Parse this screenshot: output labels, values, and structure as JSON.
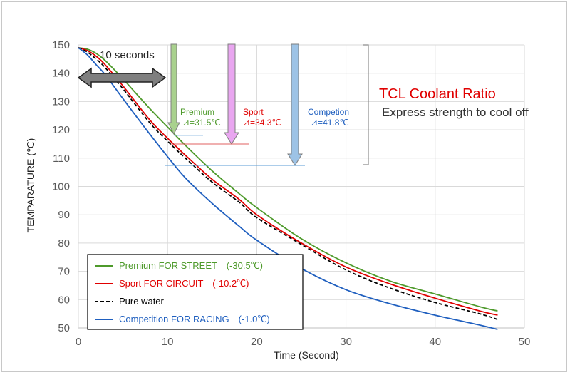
{
  "chart_data": {
    "type": "line",
    "xlabel": "Time (Second)",
    "ylabel": "TEMPARATURE (℃)",
    "xlim": [
      0,
      50
    ],
    "ylim": [
      50,
      150
    ],
    "xticks": [
      0,
      10,
      20,
      30,
      40,
      50
    ],
    "yticks": [
      50,
      60,
      70,
      80,
      90,
      100,
      110,
      120,
      130,
      140,
      150
    ],
    "grid": true,
    "legend_position": "bottom-left",
    "series": [
      {
        "name": "Premium FOR STREET　(-30.5℃)",
        "color": "#4e9a2b",
        "dash": "solid",
        "x": [
          0,
          1,
          2,
          3,
          5,
          8,
          10,
          12,
          15,
          18,
          20,
          25,
          30,
          35,
          40,
          45,
          47
        ],
        "y": [
          149,
          148.5,
          147,
          144.5,
          138,
          127.5,
          121,
          114.5,
          105.5,
          97.5,
          92.5,
          81.5,
          73,
          66.5,
          62,
          57.5,
          56
        ]
      },
      {
        "name": "Sport FOR CIRCUIT　(-10.2℃)",
        "color": "#e00000",
        "dash": "solid",
        "x": [
          0,
          1,
          2,
          3,
          5,
          8,
          10,
          11,
          12,
          15,
          18,
          20,
          25,
          30,
          35,
          40,
          45,
          47
        ],
        "y": [
          149,
          148,
          146,
          143,
          135.5,
          123.5,
          117,
          114,
          111,
          102.5,
          95.5,
          90,
          80,
          71.5,
          65.5,
          60.5,
          56,
          54.5
        ]
      },
      {
        "name": "Pure water",
        "color": "#000000",
        "dash": "dashed",
        "x": [
          0,
          1,
          2,
          3,
          5,
          8,
          10,
          12,
          15,
          18,
          20,
          25,
          30,
          35,
          40,
          45,
          47
        ],
        "y": [
          149,
          147.5,
          145,
          142,
          134.5,
          122.5,
          116,
          110,
          101.5,
          94.5,
          89,
          79.5,
          70.5,
          64,
          59,
          55,
          53
        ]
      },
      {
        "name": "Competition FOR RACING　(-1.0℃)",
        "color": "#1f5fbf",
        "dash": "solid",
        "x": [
          0,
          1,
          2,
          3,
          5,
          8,
          10,
          12,
          15,
          18,
          20,
          25,
          30,
          35,
          40,
          45,
          47
        ],
        "y": [
          149,
          146.5,
          143,
          139.5,
          131,
          118.5,
          110.5,
          103,
          94,
          86,
          81,
          71,
          63.5,
          58.5,
          54.5,
          51,
          49.5
        ]
      }
    ],
    "annotations": {
      "ten_seconds": "10 seconds",
      "title": "TCL Coolant Ratio",
      "subtitle": "Express strength to cool off",
      "premium_label": "Premium",
      "premium_delta": "⊿=31.5℃",
      "sport_label": "Sport",
      "sport_delta": "⊿=34.3℃",
      "competition_label": "Competion",
      "competition_delta": "⊿=41.8℃"
    }
  },
  "colors": {
    "premium": "#4e9a2b",
    "sport": "#e00000",
    "water": "#000000",
    "competition": "#1f5fbf",
    "premium_arrow": "#a9d18e",
    "sport_arrow": "#e9a6f0",
    "competition_arrow": "#9dc3e6",
    "grid": "#d9d9d9"
  }
}
